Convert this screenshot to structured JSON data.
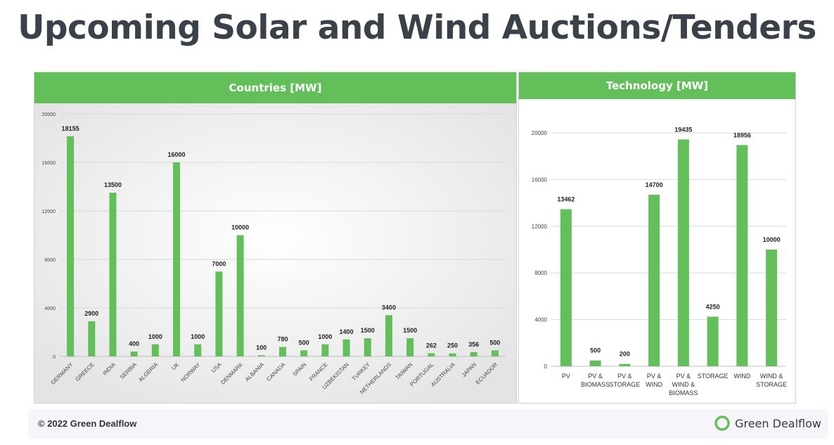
{
  "page": {
    "title": "Upcoming Solar and Wind Auctions/Tenders",
    "footer_copyright": "© 2022 Green Dealflow",
    "brand_name": "Green Dealflow"
  },
  "colors": {
    "bar": "#62bf5a",
    "header": "#62bf5a",
    "title": "#3a4149",
    "grid": "#d9d9d9"
  },
  "chart_data": [
    {
      "type": "bar",
      "title": "Countries [MW]",
      "categories": [
        "GERMANY",
        "GREECE",
        "INDIA",
        "SERBIA",
        "ALGERIA",
        "UK",
        "NORWAY",
        "USA",
        "DENMARK",
        "ALBANIA",
        "CANADA",
        "SPAIN",
        "FRANCE",
        "UZBEKISTAN",
        "TURKEY",
        "NETHERLANDS",
        "TAIWAN",
        "PORTUGAL",
        "AUSTRALIA",
        "JAPAN",
        "ECUADOR"
      ],
      "values": [
        18155,
        2900,
        13500,
        400,
        1000,
        16000,
        1000,
        7000,
        10000,
        100,
        780,
        500,
        1000,
        1400,
        1500,
        3400,
        1500,
        262,
        250,
        356,
        500
      ],
      "yticks": [
        0,
        4000,
        8000,
        12000,
        16000,
        20000
      ],
      "ylim": [
        0,
        20000
      ],
      "xlabel": "",
      "ylabel": ""
    },
    {
      "type": "bar",
      "title": "Technology [MW]",
      "categories": [
        [
          "PV"
        ],
        [
          "PV &",
          "BIOMASS"
        ],
        [
          "PV &",
          "STORAGE"
        ],
        [
          "PV &",
          "WIND"
        ],
        [
          "PV &",
          "WIND &",
          "BIOMASS"
        ],
        [
          "STORAGE"
        ],
        [
          "WIND"
        ],
        [
          "WIND &",
          "STORAGE"
        ]
      ],
      "values": [
        13462,
        500,
        200,
        14700,
        19435,
        4250,
        18956,
        10000
      ],
      "yticks": [
        0,
        4000,
        8000,
        12000,
        16000,
        20000
      ],
      "ylim": [
        0,
        20000
      ],
      "xlabel": "",
      "ylabel": ""
    }
  ]
}
